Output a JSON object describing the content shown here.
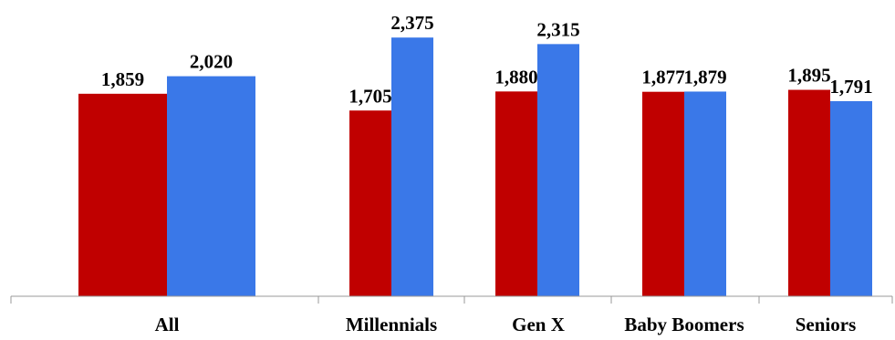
{
  "chart_data": {
    "type": "bar",
    "categories": [
      "All",
      "Millennials",
      "Gen X",
      "Baby Boomers",
      "Seniors"
    ],
    "series": [
      {
        "color": "#c00000",
        "values": [
          1859,
          1705,
          1880,
          1877,
          1895
        ]
      },
      {
        "color": "#3a78e8",
        "values": [
          2020,
          2375,
          2315,
          1879,
          1791
        ]
      }
    ],
    "value_labels": [
      [
        "1,859",
        "1,705",
        "1,880",
        "1,877",
        "1,895"
      ],
      [
        "2,020",
        "2,375",
        "2,315",
        "1,879",
        "1,791"
      ]
    ],
    "ylim": [
      0,
      2500
    ],
    "grid": false,
    "legend": "none"
  }
}
